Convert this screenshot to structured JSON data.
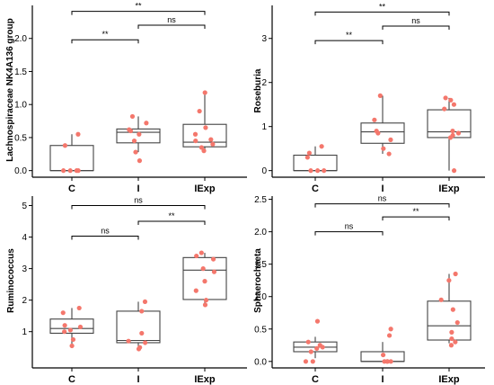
{
  "chart_data": [
    {
      "type": "box",
      "ylabel": "Lachnospiraceae NK4A136 group",
      "categories": [
        "C",
        "I",
        "IExp"
      ],
      "ylim": [
        -0.1,
        2.5
      ],
      "yticks": [
        0.0,
        0.5,
        1.0,
        1.5,
        2.0
      ],
      "ytick_labels": [
        "0.0",
        "0.5",
        "1.0",
        "1.5",
        "2.0"
      ],
      "boxes": [
        {
          "min": 0.0,
          "q1": 0.0,
          "median": 0.0,
          "q3": 0.38,
          "max": 0.55
        },
        {
          "min": 0.28,
          "q1": 0.42,
          "median": 0.58,
          "q3": 0.63,
          "max": 0.82
        },
        {
          "min": 0.28,
          "q1": 0.36,
          "median": 0.43,
          "q3": 0.7,
          "max": 1.18
        }
      ],
      "points": [
        [
          0.0,
          0.0,
          0.0,
          0.0,
          0.38,
          0.55
        ],
        [
          0.15,
          0.28,
          0.45,
          0.55,
          0.6,
          0.62,
          0.72,
          0.82
        ],
        [
          0.3,
          0.35,
          0.4,
          0.45,
          0.47,
          0.55,
          0.65,
          0.9,
          1.18
        ]
      ],
      "comparisons": [
        {
          "from": 0,
          "to": 2,
          "label": "**",
          "y": 2.41
        },
        {
          "from": 0,
          "to": 1,
          "label": "**",
          "y": 1.98
        },
        {
          "from": 1,
          "to": 2,
          "label": "ns",
          "y": 2.2
        }
      ]
    },
    {
      "type": "box",
      "ylabel": "Roseburia",
      "categories": [
        "C",
        "I",
        "IExp"
      ],
      "ylim": [
        -0.15,
        3.75
      ],
      "yticks": [
        0,
        1,
        2,
        3
      ],
      "ytick_labels": [
        "0",
        "1",
        "2",
        "3"
      ],
      "boxes": [
        {
          "min": 0.0,
          "q1": 0.0,
          "median": 0.0,
          "q3": 0.35,
          "max": 0.55
        },
        {
          "min": 0.38,
          "q1": 0.62,
          "median": 0.88,
          "q3": 1.08,
          "max": 1.7
        },
        {
          "min": 0.0,
          "q1": 0.75,
          "median": 0.88,
          "q3": 1.38,
          "max": 1.65
        }
      ],
      "points": [
        [
          0.0,
          0.0,
          0.0,
          0.3,
          0.4,
          0.55
        ],
        [
          0.38,
          0.5,
          0.7,
          0.85,
          0.9,
          1.15,
          1.7
        ],
        [
          0.0,
          0.75,
          0.8,
          0.85,
          0.9,
          1.4,
          1.5,
          1.6,
          1.65
        ]
      ],
      "comparisons": [
        {
          "from": 0,
          "to": 2,
          "label": "**",
          "y": 3.6
        },
        {
          "from": 0,
          "to": 1,
          "label": "**",
          "y": 2.95
        },
        {
          "from": 1,
          "to": 2,
          "label": "ns",
          "y": 3.28
        }
      ]
    },
    {
      "type": "box",
      "ylabel": "Ruminococcus",
      "categories": [
        "C",
        "I",
        "IExp"
      ],
      "ylim": [
        -0.15,
        5.3
      ],
      "yticks": [
        1,
        2,
        3,
        4,
        5
      ],
      "ytick_labels": [
        "1",
        "2",
        "3",
        "4",
        "5"
      ],
      "boxes": [
        {
          "min": 0.62,
          "q1": 0.95,
          "median": 1.1,
          "q3": 1.4,
          "max": 1.75
        },
        {
          "min": 0.45,
          "q1": 0.65,
          "median": 0.72,
          "q3": 1.65,
          "max": 1.95
        },
        {
          "min": 1.85,
          "q1": 2.02,
          "median": 2.95,
          "q3": 3.35,
          "max": 3.5
        }
      ],
      "points": [
        [
          0.55,
          0.75,
          1.0,
          1.05,
          1.15,
          1.2,
          1.6,
          1.75
        ],
        [
          0.45,
          0.5,
          0.65,
          0.7,
          0.95,
          1.65,
          1.95
        ],
        [
          1.85,
          2.0,
          2.3,
          2.6,
          2.9,
          3.0,
          3.3,
          3.4,
          3.5
        ]
      ],
      "comparisons": [
        {
          "from": 0,
          "to": 2,
          "label": "ns",
          "y": 5.0
        },
        {
          "from": 0,
          "to": 1,
          "label": "ns",
          "y": 4.03
        },
        {
          "from": 1,
          "to": 2,
          "label": "**",
          "y": 4.5
        }
      ]
    },
    {
      "type": "box",
      "ylabel": "Sphaerochaeta",
      "categories": [
        "C",
        "I",
        "IExp"
      ],
      "ylim": [
        -0.1,
        2.55
      ],
      "yticks": [
        0.0,
        0.5,
        1.0,
        1.5,
        2.0,
        2.5
      ],
      "ytick_labels": [
        "0.0",
        "0.5",
        "1.0",
        "1.5",
        "2.0",
        "2.5"
      ],
      "boxes": [
        {
          "min": 0.05,
          "q1": 0.15,
          "median": 0.22,
          "q3": 0.3,
          "max": 0.38
        },
        {
          "min": 0.0,
          "q1": 0.0,
          "median": 0.0,
          "q3": 0.15,
          "max": 0.3
        },
        {
          "min": 0.28,
          "q1": 0.33,
          "median": 0.55,
          "q3": 0.93,
          "max": 1.35
        }
      ],
      "points": [
        [
          0.0,
          0.0,
          0.15,
          0.2,
          0.22,
          0.25,
          0.3,
          0.62
        ],
        [
          0.0,
          0.0,
          0.0,
          0.0,
          0.1,
          0.4,
          0.5
        ],
        [
          0.25,
          0.3,
          0.35,
          0.45,
          0.6,
          0.8,
          0.95,
          1.25,
          1.35
        ]
      ],
      "comparisons": [
        {
          "from": 0,
          "to": 2,
          "label": "ns",
          "y": 2.43
        },
        {
          "from": 0,
          "to": 1,
          "label": "ns",
          "y": 2.0
        },
        {
          "from": 1,
          "to": 2,
          "label": "**",
          "y": 2.23
        }
      ]
    }
  ],
  "colors": {
    "points": "#f4776c",
    "box_stroke": "#444444",
    "axis": "#000000"
  }
}
